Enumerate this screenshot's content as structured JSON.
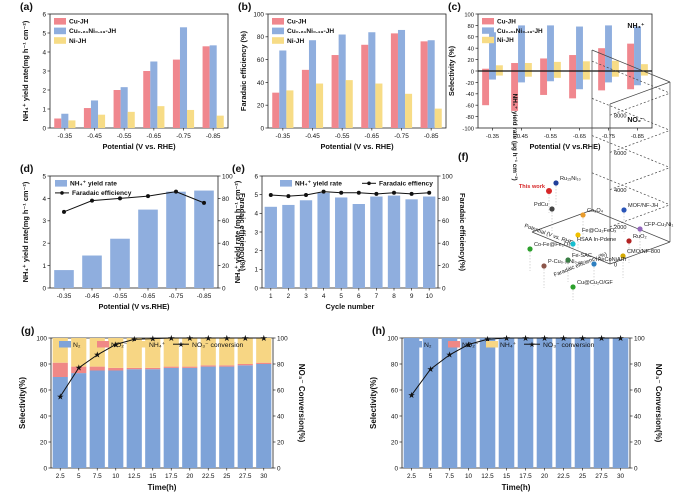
{
  "colors": {
    "cu": "#f0878e",
    "cuni": "#8faede",
    "ni": "#f7dc86",
    "n2": "#7ea3d8",
    "no2": "#f08886",
    "nh4": "#f7d684",
    "conv": "#111111"
  },
  "chart_data": [
    {
      "id": "a",
      "panel_label": "(a)",
      "type": "bar",
      "categories": [
        "-0.35",
        "-0.45",
        "-0.55",
        "-0.65",
        "-0.75",
        "-0.85"
      ],
      "series": [
        {
          "name": "Cu-JH",
          "values": [
            0.5,
            1.05,
            2.0,
            3.0,
            3.6,
            4.3
          ]
        },
        {
          "name": "Cu0.81Ni0.19-JH",
          "values": [
            0.75,
            1.45,
            2.15,
            3.5,
            5.3,
            4.35
          ]
        },
        {
          "name": "Ni-JH",
          "values": [
            0.4,
            0.7,
            0.85,
            1.15,
            0.95,
            0.65
          ]
        }
      ],
      "xlabel": "Potential (V vs. RHE)",
      "ylabel": "NH4+ yield rate(mg h-1 cm-2)",
      "ylim": [
        0,
        6
      ],
      "yticks": [
        0,
        1,
        2,
        3,
        4,
        5,
        6
      ],
      "legend": "top-left"
    },
    {
      "id": "b",
      "panel_label": "(b)",
      "type": "bar",
      "categories": [
        "-0.35",
        "-0.45",
        "-0.55",
        "-0.65",
        "-0.75",
        "-0.85"
      ],
      "series": [
        {
          "name": "Cu-JH",
          "values": [
            31,
            51,
            64,
            73,
            83,
            76
          ]
        },
        {
          "name": "Cu0.81Ni0.19-JH",
          "values": [
            68,
            77,
            82,
            84,
            86,
            77
          ]
        },
        {
          "name": "Ni-JH",
          "values": [
            33,
            39,
            42,
            39,
            30,
            17
          ]
        }
      ],
      "xlabel": "Potential (V vs. RHE)",
      "ylabel": "Faradaic efficiency (%)",
      "ylim": [
        0,
        100
      ],
      "yticks": [
        0,
        20,
        40,
        60,
        80,
        100
      ],
      "legend": "top-left"
    },
    {
      "id": "c",
      "panel_label": "(c)",
      "type": "bar",
      "categories": [
        "-0.35",
        "-0.45",
        "-0.55",
        "-0.65",
        "-0.75",
        "-0.85"
      ],
      "series": [
        {
          "name": "Cu-JH",
          "values": [
            4,
            14,
            22,
            28,
            40,
            48
          ]
        },
        {
          "name": "Cu0.81Ni0.19-JH",
          "values": [
            68,
            80,
            80,
            78,
            80,
            78
          ]
        },
        {
          "name": "Ni-JH",
          "values": [
            10,
            14,
            16,
            17,
            18,
            12
          ]
        }
      ],
      "negative_series": [
        {
          "name": "Cu-JH",
          "values": [
            -60,
            -70,
            -42,
            -48,
            -34,
            -32
          ]
        },
        {
          "name": "Cu0.81Ni0.19-JH",
          "values": [
            -15,
            -20,
            -18,
            -32,
            -20,
            -25
          ]
        },
        {
          "name": "Ni-JH",
          "values": [
            -8,
            -10,
            -12,
            -15,
            -10,
            -8
          ]
        }
      ],
      "xlabel": "Potential  (V vs.RHE)",
      "ylabel": "Selectivity (%)",
      "ylim": [
        -100,
        100
      ],
      "yticks": [
        -100,
        -80,
        -60,
        -40,
        -20,
        0,
        20,
        40,
        60,
        80,
        100
      ],
      "legend": "top-left",
      "annotations": [
        "NH4+",
        "NO2-"
      ]
    },
    {
      "id": "d",
      "panel_label": "(d)",
      "type": "bar",
      "categories": [
        "-0.35",
        "-0.45",
        "-0.55",
        "-0.65",
        "-0.75",
        "-0.85"
      ],
      "bar_series": {
        "name": "NH4+ yield rate",
        "values": [
          0.8,
          1.45,
          2.2,
          3.5,
          4.3,
          4.35
        ]
      },
      "line_series": {
        "name": "Faradaic efficiency",
        "values": [
          68,
          78,
          80,
          82,
          86,
          76
        ]
      },
      "xlabel": "Potential (V vs.RHE)",
      "ylabel": "NH4+ yield rate(mg h-1 cm-2)",
      "y2label": "Faradaic efficiency(%)",
      "ylim": [
        0,
        5
      ],
      "yticks": [
        0,
        1,
        2,
        3,
        4,
        5
      ],
      "y2lim": [
        0,
        100
      ],
      "y2ticks": [
        0,
        20,
        40,
        60,
        80,
        100
      ],
      "legend": "top-left"
    },
    {
      "id": "e",
      "panel_label": "(e)",
      "type": "bar",
      "categories": [
        "1",
        "2",
        "3",
        "4",
        "5",
        "6",
        "7",
        "8",
        "9",
        "10"
      ],
      "bar_series": {
        "name": "NH4+ yield rate",
        "values": [
          4.35,
          4.45,
          4.7,
          5.1,
          4.85,
          4.5,
          4.9,
          4.95,
          4.75,
          4.9
        ]
      },
      "line_series": {
        "name": "Faradaic effiency",
        "values": [
          83,
          82,
          83,
          86,
          85,
          85,
          84,
          85,
          84,
          85
        ]
      },
      "xlabel": "Cycle number",
      "ylabel": "NH4+ yield rate (mg h-1 cm-2)",
      "y2label": "Faradaic efficiency(%)",
      "ylim": [
        0,
        6
      ],
      "yticks": [
        0,
        1,
        2,
        3,
        4,
        5,
        6
      ],
      "y2lim": [
        0,
        100
      ],
      "y2ticks": [
        0,
        20,
        40,
        60,
        80,
        100
      ],
      "legend": "top"
    },
    {
      "id": "f",
      "panel_label": "(f)",
      "type": "scatter",
      "ylabel": "NH4+ yield rate (μg h-1 cm-2)",
      "xlabel_floor": "Potential (V vs. RHE)",
      "zlabel_floor": "Faradaic efficiency (%)",
      "zticks": [
        "0",
        "2000",
        "4000",
        "6000",
        "8000"
      ],
      "points": [
        {
          "label": "Ru15Ni10",
          "color": "#1f3f9a"
        },
        {
          "label": "This work",
          "color": "#d62728"
        },
        {
          "label": "PdCu",
          "color": "#444444"
        },
        {
          "label": "Co3O4",
          "color": "#e89b2c"
        },
        {
          "label": "MOF/NF-JH",
          "color": "#2a55b8"
        },
        {
          "label": "CFP-Cu1Ni1",
          "color": "#9467bd"
        },
        {
          "label": "Fe@Cu2FeOx",
          "color": "#f0c000"
        },
        {
          "label": "Co-Fe@Fe2O3",
          "color": "#2ca02c"
        },
        {
          "label": "HSAA In-Pdene",
          "color": "#17becf"
        },
        {
          "label": "RuO2",
          "color": "#b22222"
        },
        {
          "label": "CMO/NF-800",
          "color": "#d4a900"
        },
        {
          "label": "P-Cu0.98Ni0.02",
          "color": "#8c564b"
        },
        {
          "label": "Fe-SAC",
          "color": "#3a7d44"
        },
        {
          "label": "FeCoNiAlTi",
          "color": "#2e7fbf"
        },
        {
          "label": "Cu@Cu2O/GF",
          "color": "#2ca02c"
        }
      ]
    },
    {
      "id": "g",
      "panel_label": "(g)",
      "type": "bar",
      "categories": [
        "2.5",
        "5",
        "7.5",
        "10",
        "12.5",
        "15",
        "17.5",
        "20",
        "22.5",
        "25",
        "27.5",
        "30"
      ],
      "stacked_series": [
        {
          "name": "N2",
          "values": [
            70,
            73,
            75,
            75,
            76,
            76,
            77,
            77,
            78,
            78,
            79,
            80
          ]
        },
        {
          "name": "NO2-",
          "values": [
            11,
            5,
            3,
            2,
            1,
            1,
            1,
            1,
            1,
            1,
            1,
            1
          ]
        },
        {
          "name": "NH4+",
          "values": [
            19,
            22,
            22,
            23,
            23,
            23,
            22,
            22,
            21,
            21,
            20,
            19
          ]
        }
      ],
      "line_series": {
        "name": "NO3- conversion",
        "values": [
          55,
          77,
          87,
          95,
          99,
          99.5,
          100,
          100,
          100,
          100,
          100,
          100
        ]
      },
      "xlabel": "Time(h)",
      "ylabel": "Selectivity(%)",
      "y2label": "NO3- Conversion(%)",
      "ylim": [
        0,
        100
      ],
      "yticks": [
        0,
        20,
        40,
        60,
        80,
        100
      ],
      "y2lim": [
        0,
        100
      ],
      "y2ticks": [
        0,
        20,
        40,
        60,
        80,
        100
      ],
      "legend": "top"
    },
    {
      "id": "h",
      "panel_label": "(h)",
      "type": "bar",
      "categories": [
        "2.5",
        "5",
        "7.5",
        "10",
        "12.5",
        "15",
        "17.5",
        "20",
        "22.5",
        "25",
        "27.5",
        "30"
      ],
      "stacked_series": [
        {
          "name": "N2",
          "values": [
            100,
            100,
            100,
            100,
            100,
            100,
            100,
            100,
            100,
            100,
            100,
            100
          ]
        },
        {
          "name": "NO2-",
          "values": [
            0,
            0,
            0,
            0,
            0,
            0,
            0,
            0,
            0,
            0,
            0,
            0
          ]
        },
        {
          "name": "NH4+",
          "values": [
            0,
            0,
            0,
            0,
            0,
            0,
            0,
            0,
            0,
            0,
            0,
            0
          ]
        }
      ],
      "line_series": {
        "name": "NO3- conversion",
        "values": [
          56,
          76,
          87,
          95,
          99,
          100,
          100,
          100,
          100,
          100,
          100,
          100
        ]
      },
      "xlabel": "Time(h)",
      "ylabel": "Selectivity(%)",
      "y2label": "NO3- Conversion(%)",
      "ylim": [
        0,
        100
      ],
      "yticks": [
        0,
        20,
        40,
        60,
        80,
        100
      ],
      "y2lim": [
        0,
        100
      ],
      "y2ticks": [
        0,
        20,
        40,
        60,
        80,
        100
      ],
      "legend": "top"
    }
  ]
}
